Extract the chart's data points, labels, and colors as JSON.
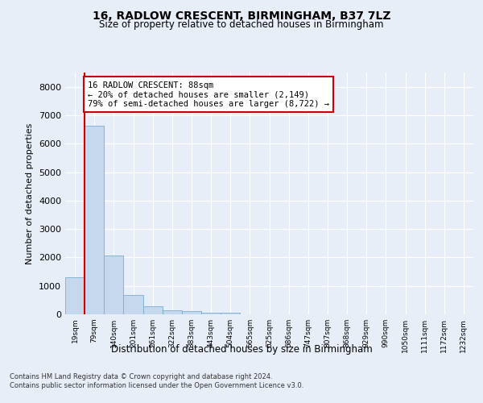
{
  "title": "16, RADLOW CRESCENT, BIRMINGHAM, B37 7LZ",
  "subtitle": "Size of property relative to detached houses in Birmingham",
  "xlabel": "Distribution of detached houses by size in Birmingham",
  "ylabel": "Number of detached properties",
  "bar_color": "#c5d8ee",
  "bar_edge_color": "#7aaed0",
  "property_line_color": "#cc0000",
  "annotation_text": "16 RADLOW CRESCENT: 88sqm\n← 20% of detached houses are smaller (2,149)\n79% of semi-detached houses are larger (8,722) →",
  "annotation_box_color": "#cc0000",
  "categories": [
    "19sqm",
    "79sqm",
    "140sqm",
    "201sqm",
    "261sqm",
    "322sqm",
    "383sqm",
    "443sqm",
    "504sqm",
    "565sqm",
    "625sqm",
    "686sqm",
    "747sqm",
    "807sqm",
    "868sqm",
    "929sqm",
    "990sqm",
    "1050sqm",
    "1111sqm",
    "1172sqm",
    "1232sqm"
  ],
  "values": [
    1310,
    6620,
    2080,
    670,
    280,
    140,
    100,
    60,
    60,
    0,
    0,
    0,
    0,
    0,
    0,
    0,
    0,
    0,
    0,
    0,
    0
  ],
  "ylim": [
    0,
    8500
  ],
  "yticks": [
    0,
    1000,
    2000,
    3000,
    4000,
    5000,
    6000,
    7000,
    8000
  ],
  "footer_line1": "Contains HM Land Registry data © Crown copyright and database right 2024.",
  "footer_line2": "Contains public sector information licensed under the Open Government Licence v3.0.",
  "background_color": "#e8eef8",
  "grid_color": "#ffffff"
}
